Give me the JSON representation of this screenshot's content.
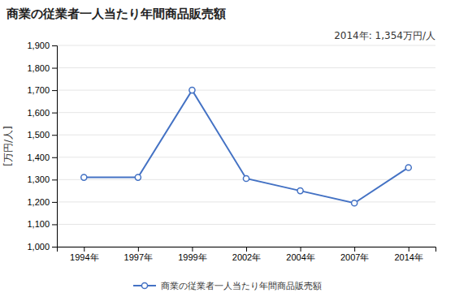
{
  "chart_data": {
    "type": "line",
    "title": "商業の従業者一人当たり年間商品販売額",
    "ylabel": "[万円/人]",
    "annotation": "2014年: 1,354万円/人",
    "categories": [
      "1994年",
      "1997年",
      "1999年",
      "2002年",
      "2004年",
      "2007年",
      "2014年"
    ],
    "series": [
      {
        "name": "商業の従業者一人当たり年間商品販売額",
        "color": "#4472c4",
        "marker": "circle",
        "values": [
          1310,
          1310,
          1700,
          1305,
          1250,
          1195,
          1354
        ]
      }
    ],
    "ylim": [
      1000,
      1900
    ],
    "yticks": [
      {
        "value": 1000,
        "label": "1,000"
      },
      {
        "value": 1100,
        "label": "1,100"
      },
      {
        "value": 1200,
        "label": "1,200"
      },
      {
        "value": 1300,
        "label": "1,300"
      },
      {
        "value": 1400,
        "label": "1,400"
      },
      {
        "value": 1500,
        "label": "1,500"
      },
      {
        "value": 1600,
        "label": "1,600"
      },
      {
        "value": 1700,
        "label": "1,700"
      },
      {
        "value": 1800,
        "label": "1,800"
      },
      {
        "value": 1900,
        "label": "1,900"
      }
    ],
    "grid": true,
    "legend": "bottom"
  }
}
